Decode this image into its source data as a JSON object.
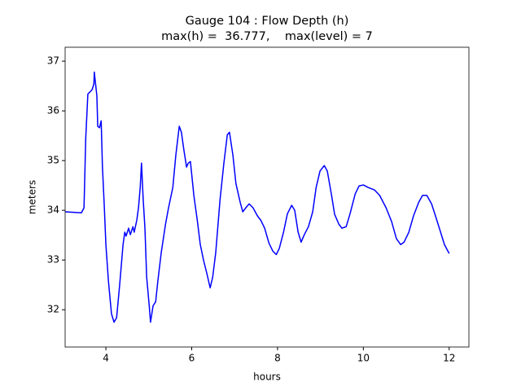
{
  "chart_data": {
    "type": "line",
    "title": "Gauge 104 : Flow Depth (h)",
    "subtitle": "max(h) =  36.777,    max(level) = 7",
    "x_label": "hours",
    "y_label": "meters",
    "xlim": [
      3.05,
      12.46
    ],
    "ylim": [
      31.25,
      37.28
    ],
    "xticks": [
      4,
      6,
      8,
      10,
      12
    ],
    "yticks": [
      32,
      33,
      34,
      35,
      36,
      37
    ],
    "x": [
      3.05,
      3.43,
      3.49,
      3.53,
      3.58,
      3.64,
      3.68,
      3.72,
      3.73,
      3.75,
      3.79,
      3.81,
      3.85,
      3.89,
      3.92,
      3.96,
      4.0,
      4.06,
      4.13,
      4.19,
      4.25,
      4.32,
      4.4,
      4.44,
      4.47,
      4.53,
      4.57,
      4.63,
      4.66,
      4.72,
      4.76,
      4.8,
      4.83,
      4.87,
      4.91,
      4.95,
      5.01,
      5.04,
      5.1,
      5.16,
      5.21,
      5.29,
      5.39,
      5.46,
      5.56,
      5.63,
      5.71,
      5.76,
      5.82,
      5.88,
      5.92,
      5.97,
      6.05,
      6.13,
      6.2,
      6.28,
      6.35,
      6.43,
      6.49,
      6.56,
      6.66,
      6.75,
      6.83,
      6.88,
      6.96,
      7.03,
      7.13,
      7.19,
      7.26,
      7.34,
      7.43,
      7.53,
      7.61,
      7.7,
      7.8,
      7.89,
      7.97,
      8.04,
      8.14,
      8.23,
      8.33,
      8.4,
      8.48,
      8.55,
      8.63,
      8.72,
      8.82,
      8.9,
      8.99,
      9.09,
      9.16,
      9.26,
      9.33,
      9.43,
      9.5,
      9.6,
      9.69,
      9.81,
      9.9,
      10.0,
      10.11,
      10.26,
      10.38,
      10.53,
      10.66,
      10.77,
      10.87,
      10.95,
      11.06,
      11.17,
      11.29,
      11.38,
      11.48,
      11.59,
      11.68,
      11.8,
      11.89,
      12.0
    ],
    "series": [
      {
        "name": "h",
        "color": "#0000ff",
        "values": [
          33.97,
          33.95,
          34.05,
          35.44,
          36.34,
          36.39,
          36.43,
          36.54,
          36.78,
          36.62,
          36.3,
          35.69,
          35.66,
          35.8,
          34.87,
          34.13,
          33.31,
          32.57,
          31.92,
          31.75,
          31.84,
          32.49,
          33.31,
          33.56,
          33.48,
          33.64,
          33.51,
          33.67,
          33.56,
          33.8,
          34.05,
          34.46,
          34.95,
          34.21,
          33.64,
          32.66,
          32.08,
          31.75,
          32.08,
          32.16,
          32.57,
          33.15,
          33.72,
          34.05,
          34.46,
          35.11,
          35.69,
          35.57,
          35.2,
          34.87,
          34.95,
          34.98,
          34.3,
          33.8,
          33.31,
          32.98,
          32.74,
          32.44,
          32.66,
          33.15,
          34.21,
          34.95,
          35.52,
          35.57,
          35.11,
          34.54,
          34.16,
          33.97,
          34.05,
          34.13,
          34.05,
          33.89,
          33.8,
          33.64,
          33.34,
          33.18,
          33.11,
          33.23,
          33.56,
          33.93,
          34.1,
          34.0,
          33.56,
          33.36,
          33.52,
          33.67,
          33.97,
          34.46,
          34.79,
          34.9,
          34.79,
          34.3,
          33.92,
          33.72,
          33.64,
          33.67,
          33.93,
          34.33,
          34.49,
          34.51,
          34.46,
          34.41,
          34.3,
          34.05,
          33.77,
          33.43,
          33.31,
          33.36,
          33.56,
          33.89,
          34.16,
          34.3,
          34.3,
          34.13,
          33.89,
          33.56,
          33.31,
          33.13
        ]
      }
    ]
  }
}
